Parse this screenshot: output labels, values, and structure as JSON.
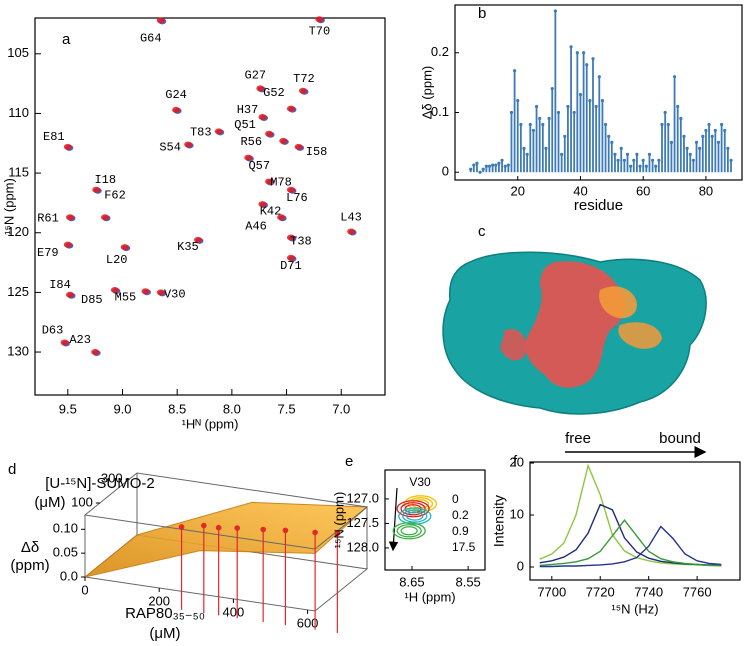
{
  "chart_data": [
    {
      "type": "hsqc",
      "panel": "a",
      "x_label": "¹Hᴺ  (ppm)",
      "y_label": "¹⁵N (ppm)",
      "xlim": [
        9.8,
        6.6
      ],
      "ylim": [
        102,
        133.6
      ],
      "xticks": [
        9.5,
        {
          "value": 9,
          "label": "9.0"
        },
        8.5,
        {
          "value": 8,
          "label": "8.0"
        },
        7.5,
        {
          "value": 7,
          "label": "7.0"
        }
      ],
      "yticks": [
        105,
        110,
        115,
        120,
        125,
        130
      ],
      "colors": [
        "#e41a1c",
        "#3a3fb0"
      ],
      "peaks": [
        {
          "label": "G64",
          "x": 8.65,
          "y": 102.2
        },
        {
          "label": "T70",
          "x": 7.2,
          "y": 102.1
        },
        {
          "label": "G27",
          "x": 7.74,
          "y": 107.9
        },
        {
          "label": "T72",
          "x": 7.35,
          "y": 108.1
        },
        {
          "label": "G24",
          "x": 8.51,
          "y": 109.7
        },
        {
          "label": "G52",
          "x": 7.46,
          "y": 109.6
        },
        {
          "label": "H37",
          "x": 7.72,
          "y": 110.3
        },
        {
          "label": "Q51",
          "x": 7.66,
          "y": 111.7
        },
        {
          "label": "T83",
          "x": 8.12,
          "y": 111.5
        },
        {
          "label": "S54",
          "x": 8.4,
          "y": 112.6
        },
        {
          "label": "R56",
          "x": 7.53,
          "y": 112.3
        },
        {
          "label": "I58",
          "x": 7.39,
          "y": 112.8
        },
        {
          "label": "E81",
          "x": 9.5,
          "y": 112.8
        },
        {
          "label": "Q57",
          "x": 7.85,
          "y": 113.7
        },
        {
          "label": "M78",
          "x": 7.66,
          "y": 115.7
        },
        {
          "label": "I18",
          "x": 9.24,
          "y": 116.4
        },
        {
          "label": "F62",
          "x": 9.16,
          "y": 118.7
        },
        {
          "label": "L76",
          "x": 7.46,
          "y": 116.4
        },
        {
          "label": "K42",
          "x": 7.72,
          "y": 117.6
        },
        {
          "label": "A46",
          "x": 7.55,
          "y": 118.7
        },
        {
          "label": "R61",
          "x": 9.48,
          "y": 118.7
        },
        {
          "label": "L43",
          "x": 6.91,
          "y": 119.9
        },
        {
          "label": "E79",
          "x": 9.5,
          "y": 121.0
        },
        {
          "label": "T38",
          "x": 7.46,
          "y": 120.4
        },
        {
          "label": "K35",
          "x": 8.31,
          "y": 120.6
        },
        {
          "label": "L20",
          "x": 8.98,
          "y": 121.2
        },
        {
          "label": "D71",
          "x": 7.46,
          "y": 122.1
        },
        {
          "label": "I84",
          "x": 9.48,
          "y": 125.2
        },
        {
          "label": "D85",
          "x": 9.07,
          "y": 124.8
        },
        {
          "label": "M55",
          "x": 8.79,
          "y": 124.9
        },
        {
          "label": "V30",
          "x": 8.65,
          "y": 125.0
        },
        {
          "label": "D63",
          "x": 9.53,
          "y": 129.2
        },
        {
          "label": "A23",
          "x": 9.25,
          "y": 130.0
        }
      ]
    },
    {
      "type": "bar",
      "panel": "b",
      "x_label": "residue",
      "y_label": "Δδ (ppm)",
      "color": "#3d7ab8",
      "xlim": [
        0,
        91.5
      ],
      "ylim": [
        -0.013,
        0.28
      ],
      "xticks": [
        20,
        40,
        60,
        80
      ],
      "yticks": [
        0,
        0.1,
        0.2
      ],
      "x": [
        5,
        6,
        7,
        8,
        9,
        10,
        11,
        12,
        13,
        14,
        15,
        16,
        17,
        18,
        19,
        20,
        21,
        22,
        23,
        24,
        25,
        26,
        27,
        28,
        29,
        30,
        31,
        32,
        33,
        34,
        35,
        36,
        37,
        38,
        39,
        40,
        41,
        42,
        43,
        44,
        45,
        46,
        47,
        48,
        49,
        50,
        51,
        52,
        53,
        54,
        55,
        56,
        57,
        58,
        59,
        60,
        61,
        62,
        63,
        64,
        65,
        66,
        67,
        68,
        69,
        70,
        71,
        72,
        73,
        74,
        75,
        76,
        77,
        78,
        79,
        80,
        81,
        82,
        83,
        84,
        85,
        86,
        87,
        88
      ],
      "values": [
        0.005,
        0.012,
        0.015,
        0.0,
        0.005,
        0.01,
        0.01,
        0.012,
        0.012,
        0.015,
        0.02,
        0.01,
        0.012,
        0.1,
        0.17,
        0.12,
        0.08,
        0.04,
        0.03,
        0.08,
        0.07,
        0.11,
        0.09,
        0.08,
        0.04,
        0.09,
        0.14,
        0.27,
        0.1,
        0.03,
        0.06,
        0.11,
        0.21,
        0.1,
        0.2,
        0.13,
        0.2,
        0.18,
        0.12,
        0.19,
        0.11,
        0.16,
        0.12,
        0.08,
        0.06,
        0.05,
        0.03,
        0.02,
        0.04,
        0.02,
        0.03,
        0.01,
        0.02,
        0.03,
        0.01,
        0.02,
        0.01,
        0.03,
        0.02,
        0.01,
        0.02,
        0.08,
        0.1,
        0.08,
        0.05,
        0.16,
        0.11,
        0.09,
        0.06,
        0.04,
        0.03,
        0.02,
        0.05,
        0.04,
        0.06,
        0.07,
        0.08,
        0.06,
        0.07,
        0.05,
        0.08,
        0.07,
        0.04,
        0.02
      ]
    },
    {
      "type": "image",
      "panel": "c"
    },
    {
      "type": "scatter3d",
      "panel": "d",
      "depth_label": [
        "[U-¹⁵N]-SUMO-2",
        "(μM)"
      ],
      "z_label": [
        "Δδ",
        "(ppm)"
      ],
      "x_label": [
        "RAP80₃₅₋₅₀",
        "(μM)"
      ],
      "color": "#e0282d",
      "surface_color": "#f5a623",
      "xlim": [
        0,
        620
      ],
      "dlim": [
        0,
        350
      ],
      "zlim": [
        0,
        0.13
      ],
      "xticks": [
        0,
        200,
        400,
        600
      ],
      "dticks": [
        100,
        300
      ],
      "zticks": [
        {
          "value": 0,
          "label": "0.0"
        },
        0.05,
        {
          "value": 0.1,
          "label": "0.10"
        }
      ],
      "x": [
        200,
        260,
        300,
        350,
        420,
        480,
        560,
        620
      ],
      "values": [
        0.09,
        0.1,
        0.1,
        0.105,
        0.11,
        0.115,
        0.12,
        0.125
      ]
    },
    {
      "type": "contour",
      "panel": "e",
      "annotation": "V30",
      "x_label": "¹H (ppm)",
      "y_label": "¹⁵N (ppm)",
      "xlim": [
        8.698,
        8.52
      ],
      "ylim": [
        126.41,
        128.45
      ],
      "xticks": [
        8.65,
        8.55
      ],
      "yticks": [
        {
          "value": 127,
          "label": "127.0"
        },
        127.5,
        {
          "value": 128,
          "label": "128.0"
        }
      ],
      "series": [
        {
          "name": "0",
          "color": "#f2c200",
          "x": 8.635,
          "y": 127.1
        },
        {
          "name": "0.2",
          "color": "#e41a1c",
          "x": 8.648,
          "y": 127.2
        },
        {
          "name": "0.9",
          "color": "#1fb5c4",
          "x": 8.645,
          "y": 127.35
        },
        {
          "name": "17.5",
          "color": "#3cb043",
          "x": 8.655,
          "y": 127.65
        }
      ]
    },
    {
      "type": "line",
      "panel": "f",
      "x_label": "¹⁵N (Hz)",
      "y_label": "Intensity",
      "annotations": [
        "free",
        "bound"
      ],
      "xlim": [
        7691,
        7777.7
      ],
      "ylim": [
        -2.5,
        20.2
      ],
      "xticks": [
        7700,
        7720,
        7740,
        7760
      ],
      "yticks": [
        0,
        10,
        20
      ],
      "x": [
        7695,
        7700,
        7705,
        7710,
        7715,
        7720,
        7725,
        7730,
        7735,
        7740,
        7745,
        7750,
        7755,
        7760,
        7765,
        7770
      ],
      "series": [
        {
          "color": "#8cc63f",
          "values": [
            1.5,
            2.5,
            4.6,
            10,
            19.5,
            13.9,
            6.2,
            3.1,
            1.8,
            1.2,
            0.8,
            0.6,
            0.5,
            0.4,
            0.3,
            0.2
          ]
        },
        {
          "color": "#1f2a7a",
          "values": [
            0.8,
            1.2,
            1.9,
            3.3,
            6.5,
            12.0,
            11.0,
            5.6,
            2.9,
            1.7,
            1.1,
            0.8,
            0.6,
            0.5,
            0.4,
            0.3
          ]
        },
        {
          "color": "#3a9a3a",
          "values": [
            0.3,
            0.5,
            0.7,
            1.0,
            1.6,
            3.0,
            6.0,
            9.0,
            6.0,
            3.0,
            1.6,
            1.0,
            0.7,
            0.5,
            0.3,
            0.3
          ]
        },
        {
          "color": "#26348a",
          "values": [
            0.1,
            0.1,
            0.2,
            0.2,
            0.3,
            0.4,
            0.6,
            1.0,
            1.8,
            4.0,
            7.8,
            5.5,
            2.5,
            1.2,
            0.7,
            0.5
          ]
        }
      ]
    }
  ]
}
